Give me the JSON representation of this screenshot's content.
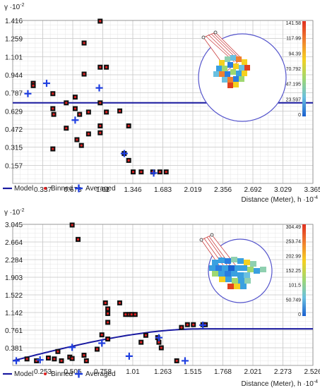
{
  "chart_data": [
    {
      "type": "scatter",
      "title": "",
      "ylabel": "γ ·10",
      "ylabel_exp": "-2",
      "xlabel": "Distance (Meter), h ·10",
      "xlabel_exp": "-4",
      "xlim": [
        0,
        3.365
      ],
      "ylim": [
        0,
        1.416
      ],
      "x_ticks": [
        "0.337",
        "0.673",
        "1.01",
        "1.346",
        "1.683",
        "2.019",
        "2.356",
        "2.692",
        "3.029",
        "3.365"
      ],
      "y_ticks": [
        "0.157",
        "0.315",
        "0.472",
        "0.629",
        "0.787",
        "0.944",
        "1.101",
        "1.259",
        "1.416"
      ],
      "grid": true,
      "legend_position": "bottom-left",
      "legend": [
        "Model",
        "Binned",
        "Averaged"
      ],
      "colors": {
        "model": "#1a1aa0",
        "binned_box": "#111111",
        "binned_dot": "#e02020",
        "averaged": "#1f3fe0",
        "grid": "#c8c8c8"
      },
      "model": {
        "type": "constant",
        "y": 0.7
      },
      "binned": [
        [
          0.23,
          0.87
        ],
        [
          0.23,
          0.85
        ],
        [
          0.45,
          0.78
        ],
        [
          0.45,
          0.65
        ],
        [
          0.46,
          0.6
        ],
        [
          0.45,
          0.3
        ],
        [
          0.6,
          0.7
        ],
        [
          0.6,
          0.48
        ],
        [
          0.7,
          0.75
        ],
        [
          0.7,
          0.65
        ],
        [
          0.72,
          0.38
        ],
        [
          0.75,
          0.6
        ],
        [
          0.77,
          0.33
        ],
        [
          0.8,
          1.22
        ],
        [
          0.8,
          0.95
        ],
        [
          0.85,
          0.62
        ],
        [
          0.85,
          0.43
        ],
        [
          0.98,
          1.41
        ],
        [
          0.98,
          1.01
        ],
        [
          0.98,
          0.7
        ],
        [
          0.98,
          0.5
        ],
        [
          0.98,
          0.44
        ],
        [
          1.05,
          1.01
        ],
        [
          1.05,
          0.62
        ],
        [
          1.2,
          0.63
        ],
        [
          1.25,
          0.26
        ],
        [
          1.3,
          0.5
        ],
        [
          1.3,
          0.2
        ],
        [
          1.35,
          0.1
        ],
        [
          1.44,
          0.1
        ],
        [
          1.57,
          0.1
        ],
        [
          1.65,
          0.1
        ],
        [
          1.72,
          0.1
        ]
      ],
      "averaged": [
        [
          0.17,
          0.78
        ],
        [
          0.38,
          0.87
        ],
        [
          0.7,
          0.55
        ],
        [
          0.97,
          0.83
        ],
        [
          1.25,
          0.26
        ],
        [
          1.58,
          0.09
        ]
      ],
      "inset": {
        "legend_values": [
          "141.58",
          "117.99",
          "94.39",
          "70.792",
          "47.195",
          "23.597",
          "0"
        ]
      }
    },
    {
      "type": "scatter",
      "title": "",
      "ylabel": "γ ·10",
      "ylabel_exp": "-2",
      "xlabel": "Distance (Meter), h ·10",
      "xlabel_exp": "-4",
      "xlim": [
        0,
        2.526
      ],
      "ylim": [
        0,
        3.045
      ],
      "x_ticks": [
        "0.253",
        "0.505",
        "0.758",
        "1.01",
        "1.263",
        "1.515",
        "1.768",
        "2.021",
        "2.273",
        "2.526"
      ],
      "y_ticks": [
        "0.381",
        "0.761",
        "1.142",
        "1.522",
        "1.903",
        "2.284",
        "2.664",
        "3.045"
      ],
      "grid": true,
      "legend_position": "bottom-left",
      "legend": [
        "Model",
        "Binned",
        "Averaged"
      ],
      "colors": {
        "model": "#1a1aa0",
        "binned_box": "#111111",
        "binned_dot": "#e02020",
        "averaged": "#1f3fe0",
        "grid": "#c8c8c8"
      },
      "model": {
        "type": "spherical",
        "nugget": 0.1,
        "sill": 0.79,
        "range": 1.6
      },
      "binned": [
        [
          0.12,
          0.14
        ],
        [
          0.2,
          0.1
        ],
        [
          0.3,
          0.16
        ],
        [
          0.35,
          0.14
        ],
        [
          0.38,
          0.3
        ],
        [
          0.41,
          0.1
        ],
        [
          0.48,
          0.18
        ],
        [
          0.5,
          0.15
        ],
        [
          0.5,
          3.03
        ],
        [
          0.55,
          2.72
        ],
        [
          0.6,
          0.22
        ],
        [
          0.62,
          0.1
        ],
        [
          0.71,
          0.35
        ],
        [
          0.75,
          0.66
        ],
        [
          0.78,
          1.35
        ],
        [
          0.8,
          1.22
        ],
        [
          0.8,
          1.12
        ],
        [
          0.8,
          0.93
        ],
        [
          0.8,
          0.57
        ],
        [
          0.9,
          1.35
        ],
        [
          0.95,
          1.1
        ],
        [
          0.98,
          1.1
        ],
        [
          1.0,
          1.1
        ],
        [
          1.03,
          1.1
        ],
        [
          1.08,
          0.5
        ],
        [
          1.12,
          0.65
        ],
        [
          1.22,
          0.6
        ],
        [
          1.23,
          0.5
        ],
        [
          1.25,
          0.38
        ],
        [
          1.38,
          0.1
        ],
        [
          1.42,
          0.82
        ],
        [
          1.47,
          0.88
        ],
        [
          1.52,
          0.88
        ],
        [
          1.6,
          0.88
        ],
        [
          1.62,
          0.88
        ]
      ],
      "averaged": [
        [
          0.03,
          0.1
        ],
        [
          0.23,
          0.12
        ],
        [
          0.5,
          0.39
        ],
        [
          0.75,
          0.48
        ],
        [
          0.98,
          0.2
        ],
        [
          1.23,
          0.6
        ],
        [
          1.45,
          0.1
        ],
        [
          1.6,
          0.87
        ]
      ],
      "inset": {
        "legend_values": [
          "304.49",
          "253.74",
          "202.99",
          "152.25",
          "101.5",
          "50.749",
          "0"
        ]
      }
    }
  ]
}
